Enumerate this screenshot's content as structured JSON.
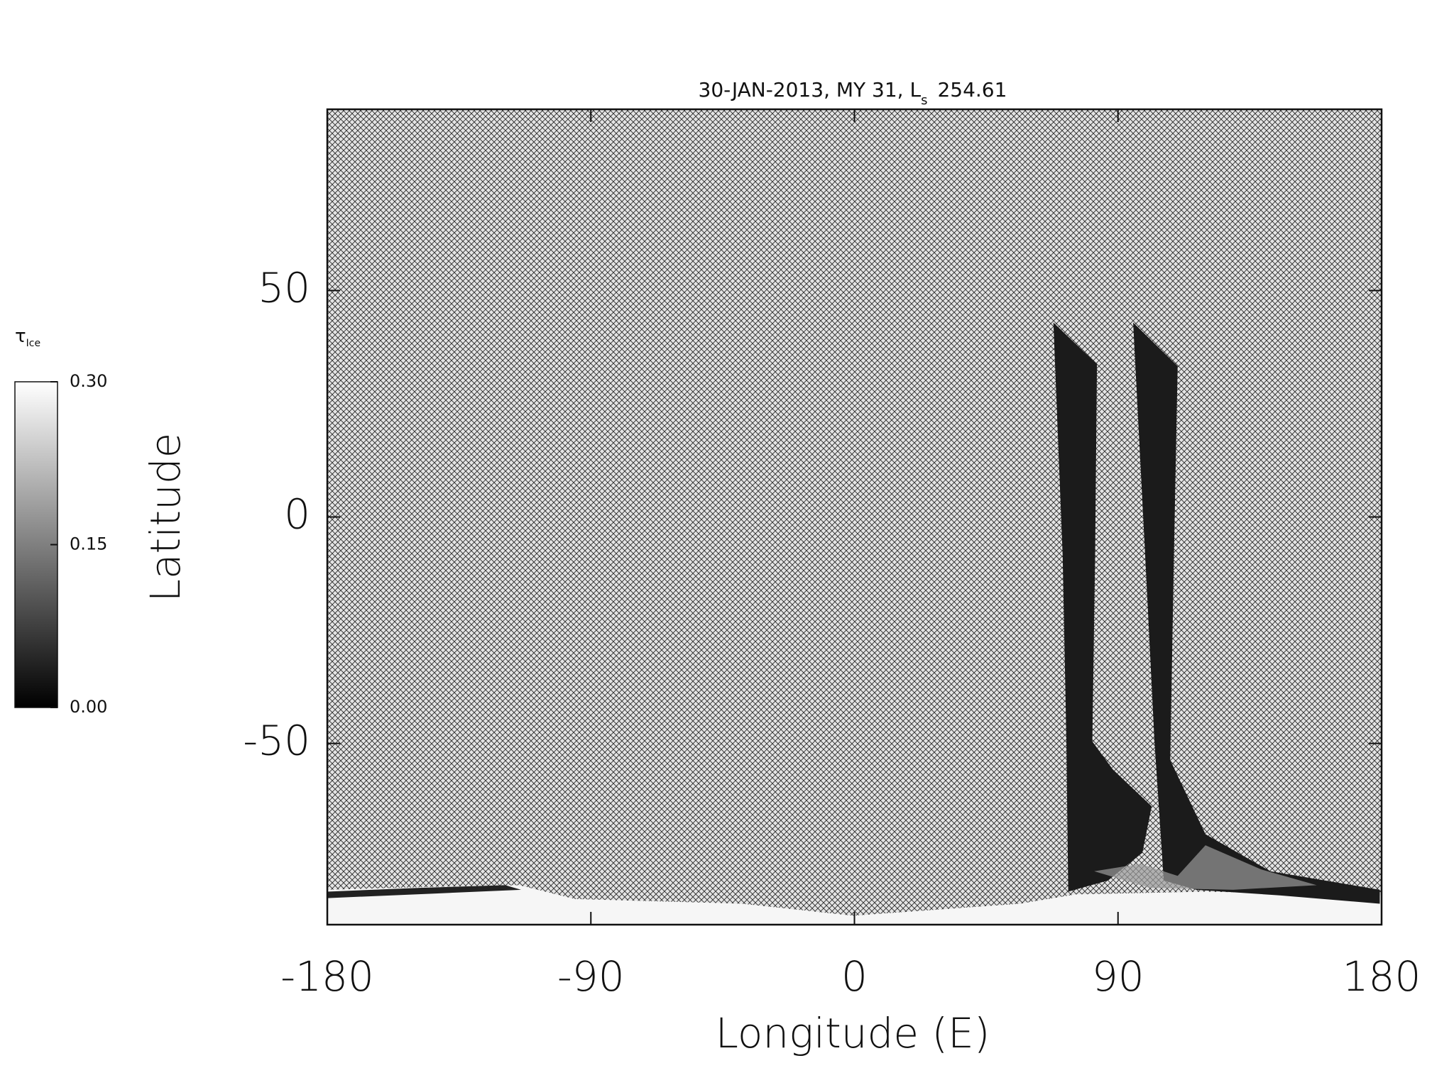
{
  "chart_data": {
    "type": "map",
    "title": "30-JAN-2013, MY 31,  L",
    "title_subscript": "s",
    "title_suffix": "254.61",
    "x_label": "Longitude (E)",
    "y_label": "Latitude",
    "xlim": [
      -180,
      180
    ],
    "ylim": [
      -90,
      90
    ],
    "xticks": [
      -180,
      -90,
      0,
      90,
      180
    ],
    "yticks": [
      -50,
      0,
      50
    ],
    "colorbar": {
      "label": "τ",
      "label_subscript": "Ice",
      "lim": [
        0,
        0.3
      ],
      "ticks": [
        {
          "value": 0,
          "label": "0.00"
        },
        {
          "value": 0.15,
          "label": "0.15"
        },
        {
          "value": 0.3,
          "label": "0.30"
        }
      ]
    }
  }
}
